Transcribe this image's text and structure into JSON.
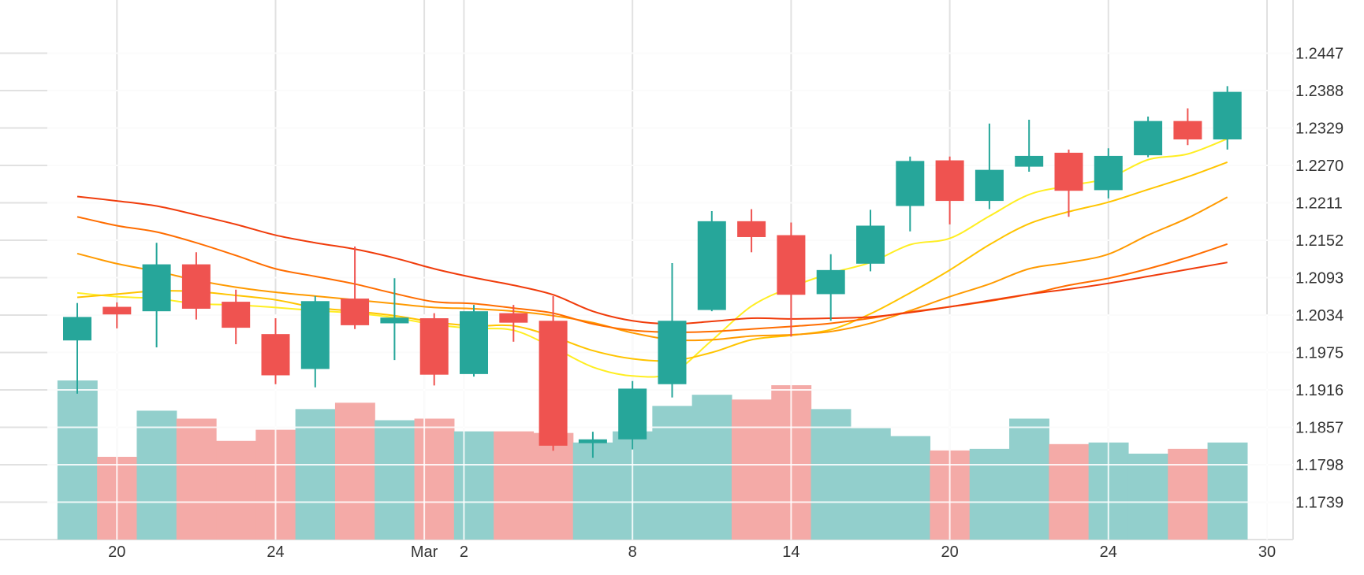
{
  "chart_data": {
    "type": "candlestick",
    "colors": {
      "up": "#26a69a",
      "down": "#ef5350",
      "volume_up": "#92cfcc",
      "volume_down": "#f4aaa7",
      "grid": "#e1e1e1",
      "ma_colors": [
        "#ffee22",
        "#ffc400",
        "#ff9a00",
        "#ff6d00",
        "#f03c0b"
      ]
    },
    "y_axis": {
      "position": "right",
      "ticks": [
        "1.2447",
        "1.2388",
        "1.2329",
        "1.2270",
        "1.2211",
        "1.2152",
        "1.2093",
        "1.2034",
        "1.1975",
        "1.1916",
        "1.1857",
        "1.1798",
        "1.1739"
      ],
      "range": [
        1.168,
        1.2506
      ]
    },
    "x_axis": {
      "ticks": [
        {
          "label": "20",
          "index": 1
        },
        {
          "label": "24",
          "index": 5
        },
        {
          "label": "Mar",
          "index": 8.75
        },
        {
          "label": "2",
          "index": 9.75
        },
        {
          "label": "8",
          "index": 14
        },
        {
          "label": "14",
          "index": 18
        },
        {
          "label": "20",
          "index": 22
        },
        {
          "label": "24",
          "index": 26
        },
        {
          "label": "30",
          "index": 30
        }
      ]
    },
    "candles": [
      {
        "o": 1.1994,
        "h": 1.2053,
        "l": 1.191,
        "c": 1.2031
      },
      {
        "o": 1.2047,
        "h": 1.2054,
        "l": 1.2013,
        "c": 1.2035
      },
      {
        "o": 1.204,
        "h": 1.2148,
        "l": 1.1983,
        "c": 1.2114
      },
      {
        "o": 1.2114,
        "h": 1.2133,
        "l": 1.2027,
        "c": 1.2044
      },
      {
        "o": 1.2055,
        "h": 1.2074,
        "l": 1.1988,
        "c": 1.2014
      },
      {
        "o": 1.2004,
        "h": 1.2029,
        "l": 1.1925,
        "c": 1.1939
      },
      {
        "o": 1.1949,
        "h": 1.2064,
        "l": 1.192,
        "c": 1.2056
      },
      {
        "o": 1.206,
        "h": 1.2142,
        "l": 1.2012,
        "c": 1.2018
      },
      {
        "o": 1.2021,
        "h": 1.2092,
        "l": 1.1963,
        "c": 1.203
      },
      {
        "o": 1.2029,
        "h": 1.2037,
        "l": 1.1923,
        "c": 1.194
      },
      {
        "o": 1.1941,
        "h": 1.205,
        "l": 1.1937,
        "c": 1.204
      },
      {
        "o": 1.2037,
        "h": 1.205,
        "l": 1.1992,
        "c": 1.2022
      },
      {
        "o": 1.2025,
        "h": 1.2064,
        "l": 1.182,
        "c": 1.1828
      },
      {
        "o": 1.1832,
        "h": 1.185,
        "l": 1.1809,
        "c": 1.1838
      },
      {
        "o": 1.1838,
        "h": 1.193,
        "l": 1.1822,
        "c": 1.1918
      },
      {
        "o": 1.1925,
        "h": 1.2116,
        "l": 1.1904,
        "c": 1.2025
      },
      {
        "o": 1.2042,
        "h": 1.2198,
        "l": 1.204,
        "c": 1.2182
      },
      {
        "o": 1.2182,
        "h": 1.2201,
        "l": 1.2133,
        "c": 1.2157
      },
      {
        "o": 1.216,
        "h": 1.218,
        "l": 1.2,
        "c": 1.2066
      },
      {
        "o": 1.2067,
        "h": 1.213,
        "l": 1.2025,
        "c": 1.2105
      },
      {
        "o": 1.2115,
        "h": 1.22,
        "l": 1.2103,
        "c": 1.2175
      },
      {
        "o": 1.2206,
        "h": 1.2284,
        "l": 1.2166,
        "c": 1.2277
      },
      {
        "o": 1.2278,
        "h": 1.2284,
        "l": 1.2177,
        "c": 1.2214
      },
      {
        "o": 1.2214,
        "h": 1.2336,
        "l": 1.2201,
        "c": 1.2263
      },
      {
        "o": 1.2268,
        "h": 1.2342,
        "l": 1.226,
        "c": 1.2285
      },
      {
        "o": 1.229,
        "h": 1.2295,
        "l": 1.2189,
        "c": 1.223
      },
      {
        "o": 1.2231,
        "h": 1.2297,
        "l": 1.2218,
        "c": 1.2285
      },
      {
        "o": 1.2286,
        "h": 1.2347,
        "l": 1.2283,
        "c": 1.234
      },
      {
        "o": 1.234,
        "h": 1.236,
        "l": 1.2302,
        "c": 1.2311
      },
      {
        "o": 1.2311,
        "h": 1.2395,
        "l": 1.2295,
        "c": 1.2386
      }
    ],
    "volume": {
      "unit": "relative",
      "values": [
        1.0,
        0.52,
        0.81,
        0.76,
        0.62,
        0.69,
        0.82,
        0.86,
        0.75,
        0.76,
        0.68,
        0.68,
        0.67,
        0.61,
        0.68,
        0.84,
        0.91,
        0.88,
        0.97,
        0.82,
        0.7,
        0.65,
        0.56,
        0.57,
        0.76,
        0.6,
        0.61,
        0.54,
        0.57,
        0.61
      ],
      "up": [
        true,
        false,
        true,
        false,
        false,
        false,
        true,
        false,
        true,
        false,
        true,
        false,
        false,
        true,
        true,
        true,
        true,
        false,
        false,
        true,
        true,
        true,
        false,
        true,
        true,
        false,
        true,
        true,
        false,
        true
      ]
    },
    "moving_averages": [
      {
        "values": [
          1.2069,
          1.2063,
          1.206,
          1.2052,
          1.205,
          1.2046,
          1.2041,
          1.2037,
          1.203,
          1.2019,
          1.2013,
          1.201,
          1.1983,
          1.1952,
          1.1938,
          1.1943,
          1.1994,
          1.2048,
          1.2078,
          1.21,
          1.2117,
          1.2145,
          1.2155,
          1.219,
          1.2224,
          1.2238,
          1.225,
          1.2279,
          1.2288,
          1.2312
        ]
      },
      {
        "values": [
          1.2062,
          1.2067,
          1.2072,
          1.2071,
          1.2065,
          1.2058,
          1.2046,
          1.204,
          1.2033,
          1.2023,
          1.2017,
          1.2017,
          1.2,
          1.1978,
          1.1965,
          1.1962,
          1.1975,
          1.1995,
          1.2002,
          1.2011,
          1.2036,
          1.2069,
          1.2105,
          1.2145,
          1.2178,
          1.2197,
          1.2212,
          1.2232,
          1.2252,
          1.2275
        ]
      },
      {
        "values": [
          1.2131,
          1.2115,
          1.2103,
          1.2089,
          1.2078,
          1.207,
          1.2064,
          1.2058,
          1.2052,
          1.2046,
          1.2044,
          1.204,
          1.2033,
          1.2022,
          1.2006,
          1.1995,
          1.1995,
          1.2001,
          1.2003,
          1.2008,
          1.2021,
          1.2041,
          1.2063,
          1.2083,
          1.2107,
          1.2117,
          1.213,
          1.216,
          1.2187,
          1.222
        ]
      },
      {
        "values": [
          1.2189,
          1.2175,
          1.2165,
          1.2148,
          1.2128,
          1.2107,
          1.2095,
          1.2083,
          1.2068,
          1.2055,
          1.2052,
          1.2045,
          1.2037,
          1.202,
          1.201,
          1.2007,
          1.2008,
          1.2012,
          1.2016,
          1.2021,
          1.2029,
          1.2039,
          1.2047,
          1.2056,
          1.2067,
          1.2081,
          1.2092,
          1.2107,
          1.2125,
          1.2146
        ]
      },
      {
        "values": [
          1.2221,
          1.2214,
          1.2206,
          1.2192,
          1.2177,
          1.216,
          1.2148,
          1.2138,
          1.2124,
          1.2107,
          1.2093,
          1.2081,
          1.2066,
          1.204,
          1.2025,
          1.202,
          1.2024,
          1.2029,
          1.2028,
          1.2029,
          1.2031,
          1.2038,
          1.2047,
          1.2057,
          1.2067,
          1.2075,
          1.2084,
          1.2095,
          1.2106,
          1.2117
        ]
      }
    ]
  }
}
